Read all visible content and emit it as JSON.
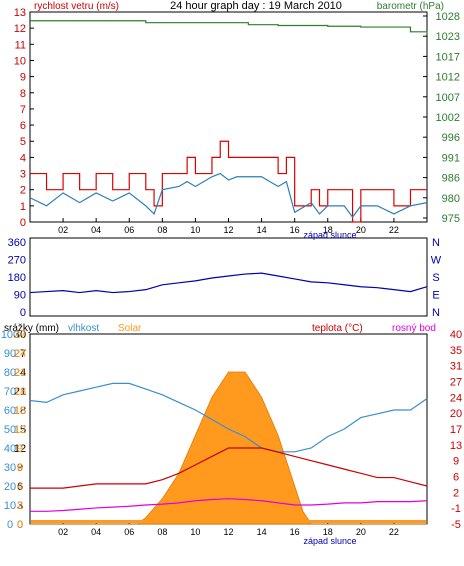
{
  "chart_data": [
    {
      "type": "line",
      "panel": "wind-barometer",
      "title": "24 hour graph day : 19 March 2010",
      "left_label": "rychlost vetru (m/s)",
      "right_label": "barometr (hPa)",
      "left_ticks": [
        "0",
        "1",
        "2",
        "3",
        "4",
        "5",
        "6",
        "7",
        "8",
        "9",
        "10",
        "11",
        "12",
        "13"
      ],
      "right_ticks": [
        "975",
        "980",
        "986",
        "991",
        "996",
        "1002",
        "1007",
        "1012",
        "1017",
        "1023",
        "1028"
      ],
      "x_ticks": [
        "02",
        "04",
        "06",
        "08",
        "10",
        "12",
        "14",
        "16",
        "18",
        "20",
        "22"
      ],
      "sunset_label": "západ slunce",
      "ylim_left": [
        0,
        13
      ],
      "ylim_right": [
        975,
        1028
      ],
      "xlim": [
        0,
        24
      ],
      "series": [
        {
          "name": "rychlost vetru",
          "color": "#dd0000",
          "x": [
            0,
            1,
            2,
            3,
            4,
            5,
            6,
            7,
            7.5,
            8,
            9,
            9.5,
            10,
            11,
            11.5,
            12,
            12.5,
            13,
            14,
            15,
            15.5,
            16,
            17,
            17.5,
            18,
            19,
            19.5,
            20,
            21,
            22,
            23,
            24
          ],
          "y": [
            3,
            2,
            3,
            2,
            3,
            2,
            3,
            2,
            1,
            3,
            3,
            4,
            3,
            4,
            5,
            4,
            4,
            4,
            4,
            3,
            4,
            1,
            2,
            1,
            2,
            2,
            0,
            2,
            2,
            1,
            2,
            2
          ]
        },
        {
          "name": "",
          "color": "#2a7fb8",
          "x": [
            0,
            1,
            2,
            3,
            4,
            5,
            6,
            7,
            7.5,
            8,
            9,
            9.5,
            10,
            11,
            11.5,
            12,
            12.5,
            13,
            14,
            15,
            15.5,
            16,
            17,
            17.5,
            18,
            19,
            19.5,
            20,
            21,
            22,
            23,
            24
          ],
          "y": [
            1.5,
            1,
            1.8,
            1.2,
            1.8,
            1.3,
            1.8,
            1,
            0.5,
            2,
            2.2,
            2.5,
            2.2,
            2.8,
            3,
            2.6,
            2.8,
            2.8,
            2.8,
            2.2,
            2.5,
            0.6,
            1.2,
            0.5,
            1,
            1,
            0.3,
            1,
            1,
            0.5,
            1,
            1.2
          ]
        },
        {
          "name": "barometr",
          "color": "#2e7d2e",
          "x": [
            0,
            4,
            6.5,
            7,
            12.5,
            13,
            13.2,
            14,
            15,
            16,
            18,
            20,
            22,
            23,
            23.5,
            24
          ],
          "y": [
            1025.8,
            1025.8,
            1025.8,
            1025.3,
            1025.3,
            1025.3,
            1024.8,
            1024.8,
            1024.6,
            1024.6,
            1024.4,
            1024.2,
            1024.2,
            1023.0,
            1023.0,
            1022.5
          ]
        }
      ]
    },
    {
      "type": "line",
      "panel": "wind-direction",
      "left_ticks": [
        "0",
        "90",
        "180",
        "270",
        "360"
      ],
      "right_ticks": [
        "N",
        "W",
        "S",
        "E",
        "N"
      ],
      "ylim": [
        0,
        360
      ],
      "xlim": [
        0,
        24
      ],
      "series": [
        {
          "name": "",
          "color": "#0000b0",
          "x": [
            0,
            1,
            2,
            3,
            4,
            5,
            6,
            7,
            8,
            9,
            10,
            11,
            12,
            13,
            14,
            15,
            16,
            17,
            18,
            19,
            20,
            21,
            22,
            23,
            24
          ],
          "y": [
            100,
            105,
            110,
            100,
            110,
            100,
            105,
            115,
            140,
            150,
            160,
            175,
            185,
            195,
            200,
            185,
            170,
            155,
            150,
            140,
            130,
            125,
            115,
            105,
            130
          ]
        }
      ]
    },
    {
      "type": "area",
      "panel": "rain-humidity-solar-temperature",
      "legend": [
        "srážky (mm)",
        "vlhkost",
        "Solar",
        "teplota (°C)",
        "rosný bod"
      ],
      "rain_ticks": [
        "0",
        "3",
        "6",
        "9",
        "12",
        "15",
        "18",
        "21",
        "24",
        "27",
        "30"
      ],
      "humidity_ticks": [
        "0",
        "10",
        "20",
        "30",
        "40",
        "50",
        "60",
        "70",
        "80",
        "90",
        "100"
      ],
      "solar_ticks": [
        "0",
        "2",
        "4",
        "6",
        "9",
        "12",
        "15",
        "18",
        "21",
        "24",
        "27",
        "30"
      ],
      "temp_ticks": [
        "-5",
        "-1",
        "2",
        "6",
        "9",
        "13",
        "17",
        "20",
        "24",
        "27",
        "31",
        "35",
        "40"
      ],
      "x_ticks": [
        "02",
        "04",
        "06",
        "08",
        "10",
        "12",
        "14",
        "16",
        "18",
        "20",
        "22"
      ],
      "sunset_label": "západ slunce",
      "xlim": [
        0,
        24
      ],
      "series": [
        {
          "name": "vlhkost",
          "color": "#3a8fd0",
          "x": [
            0,
            1,
            2,
            3,
            4,
            5,
            6,
            7,
            8,
            9,
            10,
            11,
            12,
            13,
            14,
            15,
            16,
            17,
            18,
            19,
            20,
            21,
            22,
            23,
            24
          ],
          "y": [
            65,
            64,
            68,
            70,
            72,
            74,
            74,
            71,
            68,
            64,
            60,
            55,
            50,
            46,
            40,
            38,
            38,
            40,
            46,
            50,
            56,
            58,
            60,
            60,
            66
          ]
        },
        {
          "name": "teplota",
          "color": "#cc0000",
          "x": [
            0,
            1,
            2,
            3,
            4,
            5,
            6,
            7,
            8,
            9,
            10,
            11,
            12,
            13,
            14,
            15,
            16,
            17,
            18,
            19,
            20,
            21,
            22,
            23,
            24
          ],
          "y": [
            3.5,
            3.5,
            3.5,
            4,
            4.5,
            4.5,
            4.5,
            4.5,
            5.5,
            7,
            9,
            11,
            13,
            13,
            13,
            12,
            11,
            10,
            9,
            8,
            7,
            6,
            6,
            5,
            4
          ]
        },
        {
          "name": "rosný bod",
          "color": "#e000e0",
          "x": [
            0,
            1,
            2,
            3,
            4,
            5,
            6,
            7,
            8,
            9,
            10,
            11,
            12,
            13,
            14,
            15,
            16,
            17,
            18,
            19,
            20,
            21,
            22,
            23,
            24
          ],
          "y": [
            -2,
            -2,
            -1.8,
            -1.5,
            -1.2,
            -1,
            -0.8,
            -0.5,
            -0.3,
            0,
            0.5,
            0.8,
            1,
            0.8,
            0.5,
            0,
            -0.5,
            -0.5,
            -0.3,
            0,
            0,
            0.3,
            0.3,
            0.3,
            0.5
          ]
        },
        {
          "name": "Solar",
          "color": "#ff9a1f",
          "x": [
            0,
            6.5,
            7,
            8,
            9,
            10,
            11,
            12,
            13,
            14,
            15,
            16,
            16.5,
            17,
            24
          ],
          "y": [
            0,
            0,
            1,
            4,
            8,
            14,
            20,
            24,
            24,
            20,
            14,
            6,
            2,
            0,
            0
          ]
        }
      ]
    }
  ]
}
